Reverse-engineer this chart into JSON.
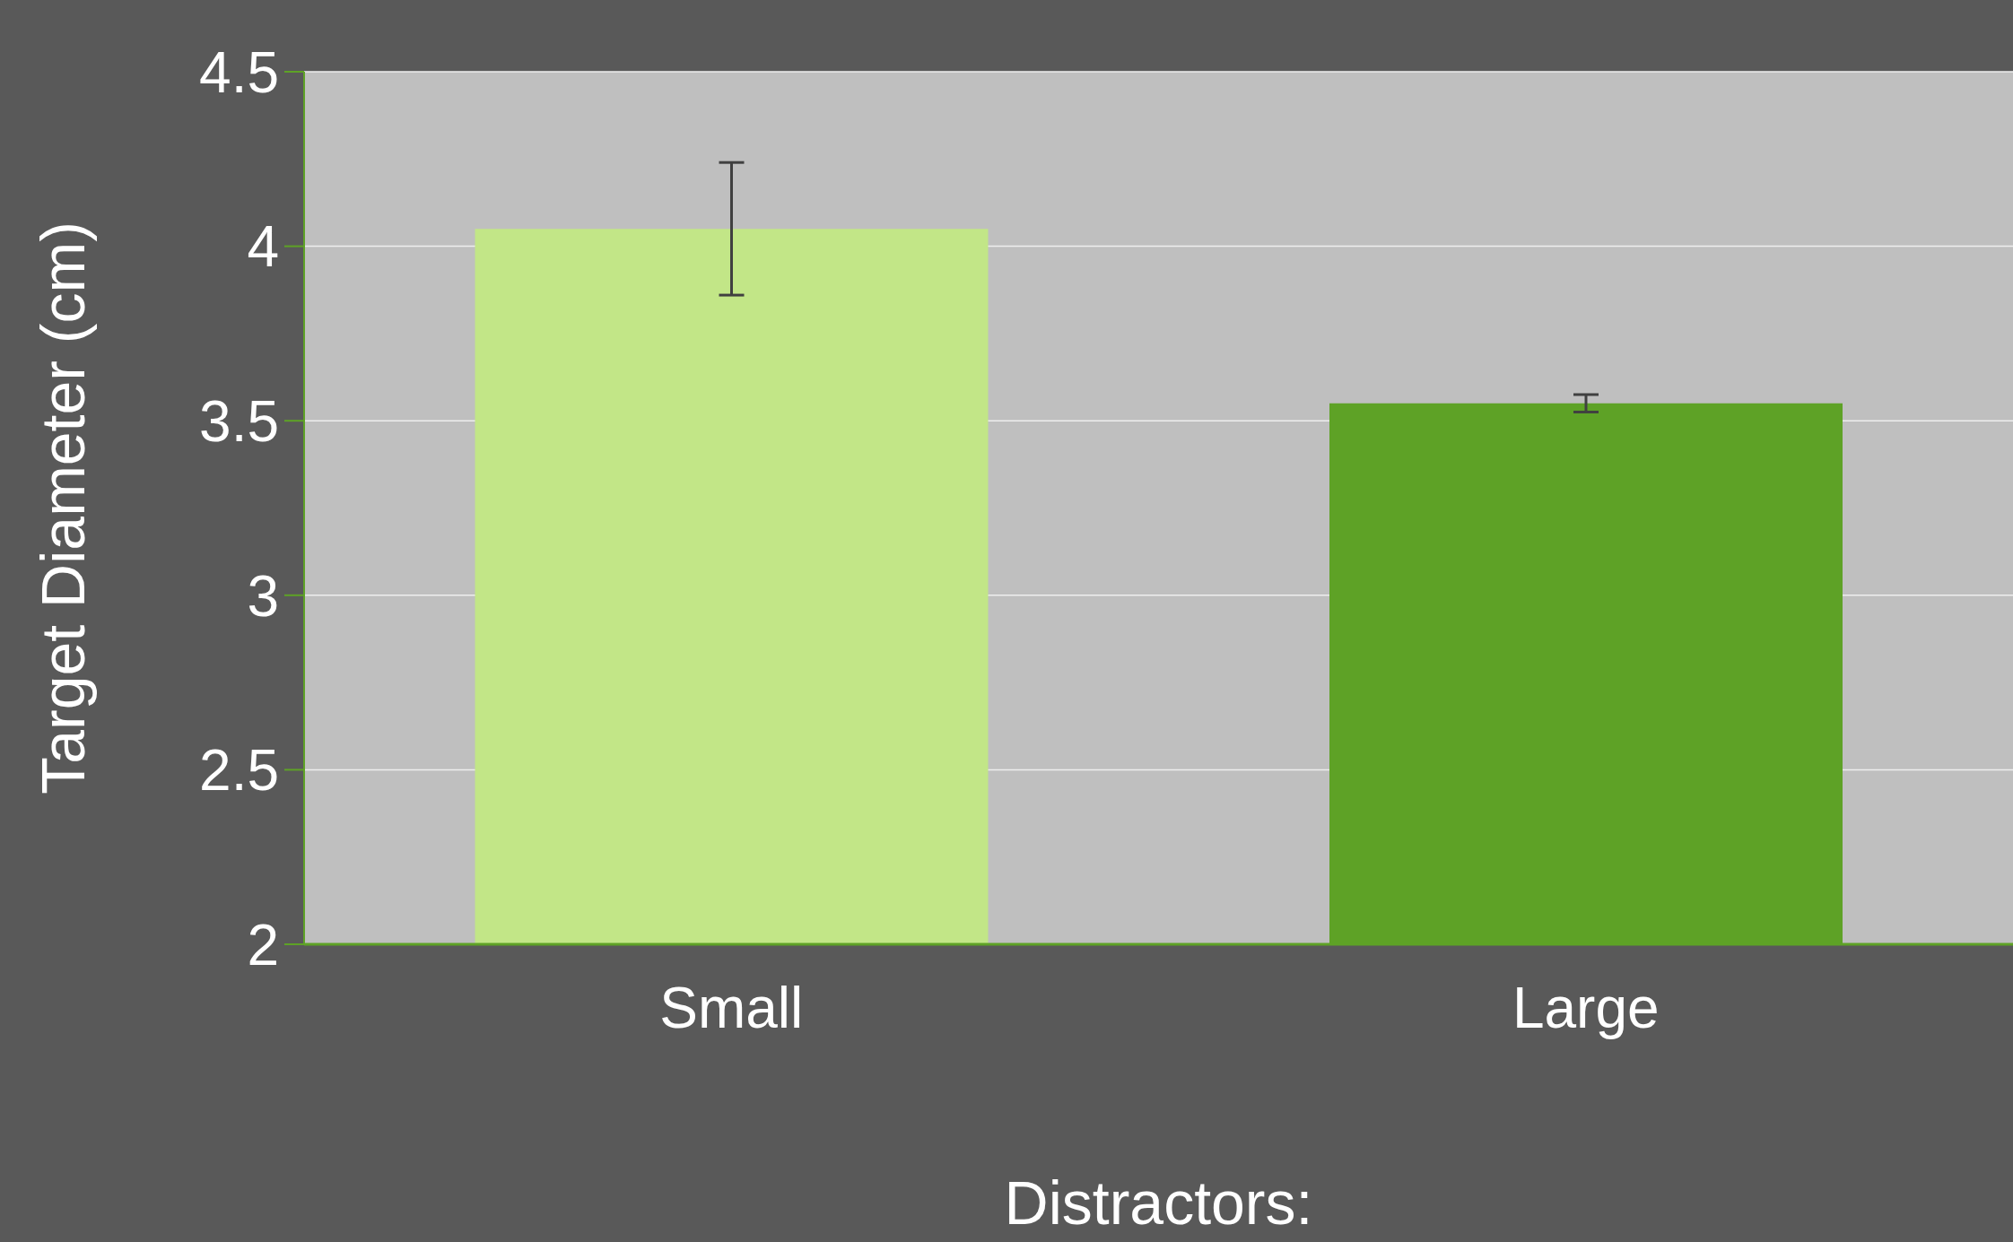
{
  "chart_data": {
    "type": "bar",
    "xlabel": "Distractors:",
    "ylabel": "Target Diameter (cm)",
    "categories": [
      "Small",
      "Large"
    ],
    "values": [
      4.05,
      3.55
    ],
    "errors": [
      0.19,
      0.025
    ],
    "colors": [
      "#c2e687",
      "#5ea226"
    ],
    "ylim": [
      2,
      4.5
    ],
    "yticks": [
      2,
      2.5,
      3,
      3.5,
      4,
      4.5
    ],
    "grid": "y",
    "legend": false
  }
}
